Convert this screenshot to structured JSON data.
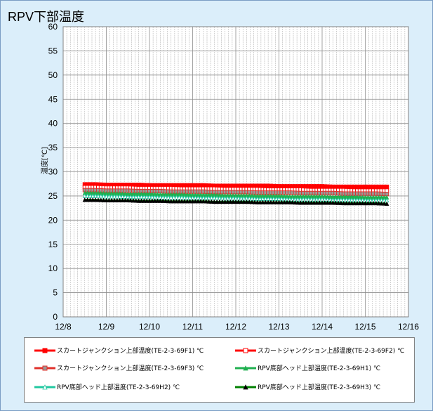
{
  "chart_data": {
    "type": "line",
    "title": "RPV下部温度",
    "ylabel": "温度[℃]",
    "xlabel": "",
    "x_ticks": [
      "12/8",
      "12/9",
      "12/10",
      "12/11",
      "12/12",
      "12/13",
      "12/14",
      "12/15",
      "12/16"
    ],
    "x_range": [
      "12/8",
      "12/16"
    ],
    "ylim": [
      0,
      60
    ],
    "y_ticks": [
      0,
      5,
      10,
      15,
      20,
      25,
      30,
      35,
      40,
      45,
      50,
      55,
      60
    ],
    "grid": true,
    "legend_position": "bottom",
    "x": [
      "12/8 12:00",
      "12/8 18:00",
      "12/9 00:00",
      "12/9 06:00",
      "12/9 12:00",
      "12/9 18:00",
      "12/10 00:00",
      "12/10 06:00",
      "12/10 12:00",
      "12/10 18:00",
      "12/11 00:00",
      "12/11 06:00",
      "12/11 12:00",
      "12/11 18:00",
      "12/12 00:00",
      "12/12 06:00",
      "12/12 12:00",
      "12/12 18:00",
      "12/13 00:00",
      "12/13 06:00",
      "12/13 12:00",
      "12/13 18:00",
      "12/14 00:00",
      "12/14 06:00",
      "12/14 12:00",
      "12/14 18:00",
      "12/15 00:00",
      "12/15 06:00",
      "12/15 12:00"
    ],
    "series": [
      {
        "name": "スカートジャンクション上部温度(TE-2-3-69F1) ℃",
        "color": "#ff0000",
        "marker": "square-filled",
        "values": [
          27.4,
          27.4,
          27.3,
          27.3,
          27.3,
          27.3,
          27.2,
          27.2,
          27.2,
          27.2,
          27.2,
          27.2,
          27.1,
          27.1,
          27.1,
          27.1,
          27.1,
          27.1,
          27.0,
          27.0,
          27.0,
          27.0,
          27.0,
          26.9,
          26.9,
          26.9,
          26.9,
          26.9,
          26.9
        ]
      },
      {
        "name": "スカートジャンクション上部温度(TE-2-3-69F2) ℃",
        "color": "#ff0000",
        "marker": "square-open",
        "values": [
          26.8,
          26.8,
          26.7,
          26.7,
          26.7,
          26.6,
          26.6,
          26.6,
          26.6,
          26.5,
          26.5,
          26.5,
          26.5,
          26.4,
          26.4,
          26.4,
          26.4,
          26.3,
          26.3,
          26.3,
          26.3,
          26.2,
          26.2,
          26.2,
          26.2,
          26.1,
          26.1,
          26.1,
          26.1
        ]
      },
      {
        "name": "スカートジャンクション上部温度(TE-2-3-69F3) ℃",
        "color": "#e0302a",
        "marker": "square-gray",
        "values": [
          26.2,
          26.2,
          26.1,
          26.1,
          26.1,
          26.0,
          26.0,
          26.0,
          25.9,
          25.9,
          25.9,
          25.9,
          25.8,
          25.8,
          25.8,
          25.8,
          25.7,
          25.7,
          25.7,
          25.7,
          25.6,
          25.6,
          25.6,
          25.6,
          25.5,
          25.5,
          25.5,
          25.5,
          25.4
        ]
      },
      {
        "name": "RPV底部ヘッド上部温度(TE-2-3-69H1) ℃",
        "color": "#20b050",
        "marker": "triangle-filled",
        "values": [
          25.6,
          25.6,
          25.5,
          25.5,
          25.4,
          25.4,
          25.4,
          25.3,
          25.3,
          25.3,
          25.2,
          25.2,
          25.2,
          25.1,
          25.1,
          25.1,
          25.0,
          25.0,
          25.0,
          24.9,
          24.9,
          24.9,
          24.9,
          24.8,
          24.8,
          24.8,
          24.7,
          24.7,
          24.7
        ]
      },
      {
        "name": "RPV底部ヘッド上部温度(TE-2-3-69H2) ℃",
        "color": "#20c8a0",
        "marker": "triangle-open",
        "values": [
          25.0,
          25.0,
          24.9,
          24.9,
          24.8,
          24.8,
          24.8,
          24.7,
          24.7,
          24.7,
          24.6,
          24.6,
          24.6,
          24.5,
          24.5,
          24.5,
          24.4,
          24.4,
          24.4,
          24.3,
          24.3,
          24.3,
          24.3,
          24.2,
          24.2,
          24.2,
          24.1,
          24.1,
          24.1
        ]
      },
      {
        "name": "RPV底部ヘッド上部温度(TE-2-3-69H3) ℃",
        "color": "#008000",
        "marker": "triangle-black",
        "values": [
          24.2,
          24.2,
          24.1,
          24.1,
          24.1,
          24.0,
          24.0,
          24.0,
          23.9,
          23.9,
          23.9,
          23.9,
          23.8,
          23.8,
          23.8,
          23.8,
          23.7,
          23.7,
          23.7,
          23.7,
          23.6,
          23.6,
          23.6,
          23.6,
          23.5,
          23.5,
          23.5,
          23.5,
          23.4
        ]
      }
    ]
  }
}
